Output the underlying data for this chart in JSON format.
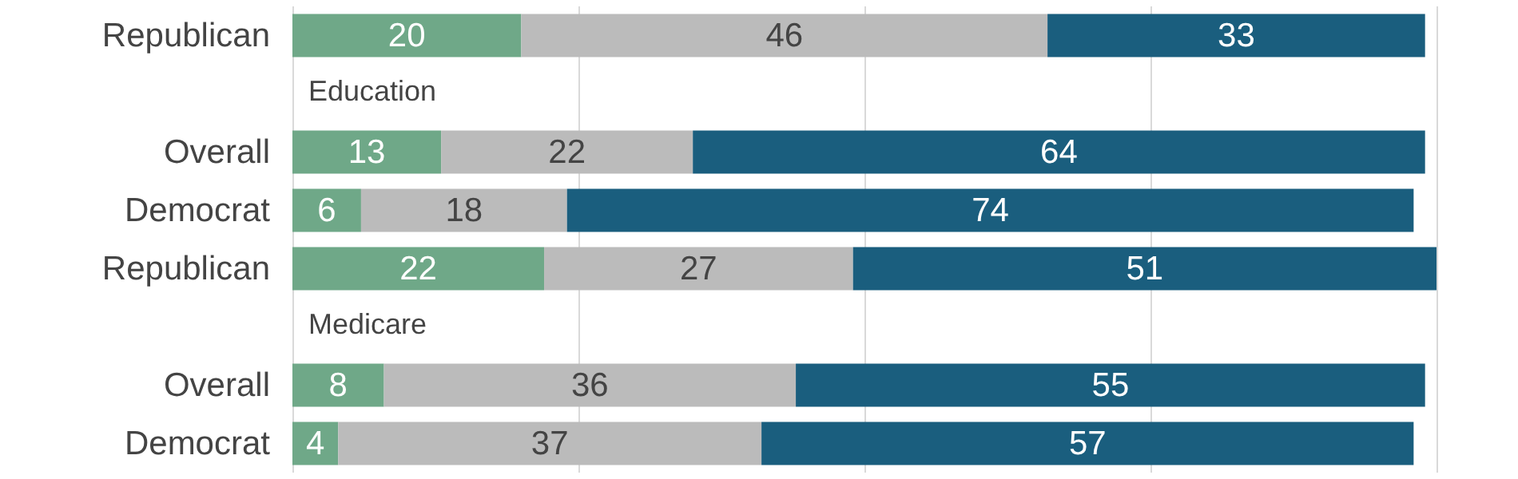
{
  "chart_data": {
    "type": "bar",
    "orientation": "horizontal",
    "stacked": true,
    "data_labels": true,
    "grid": "x",
    "tick_labels": "y",
    "categories": [
      "Republican",
      "Education",
      "Overall",
      "Democrat",
      "Republican",
      "Medicare",
      "Overall",
      "Democrat"
    ],
    "xlim": [
      0,
      100
    ],
    "xticks": [
      {
        "value": 0,
        "label": null
      },
      {
        "value": 25,
        "label": null
      },
      {
        "value": 50,
        "label": null
      },
      {
        "value": 75,
        "label": null
      },
      {
        "value": 100,
        "label": null
      }
    ],
    "series": [
      {
        "color": "#6fa888",
        "values": [
          20,
          null,
          13,
          6,
          22,
          null,
          8,
          4
        ]
      },
      {
        "color": "#bbbbbb",
        "values": [
          46,
          null,
          22,
          18,
          27,
          null,
          36,
          37
        ]
      },
      {
        "color": "#1a5e7e",
        "values": [
          33,
          null,
          64,
          74,
          51,
          null,
          55,
          57
        ]
      }
    ]
  }
}
